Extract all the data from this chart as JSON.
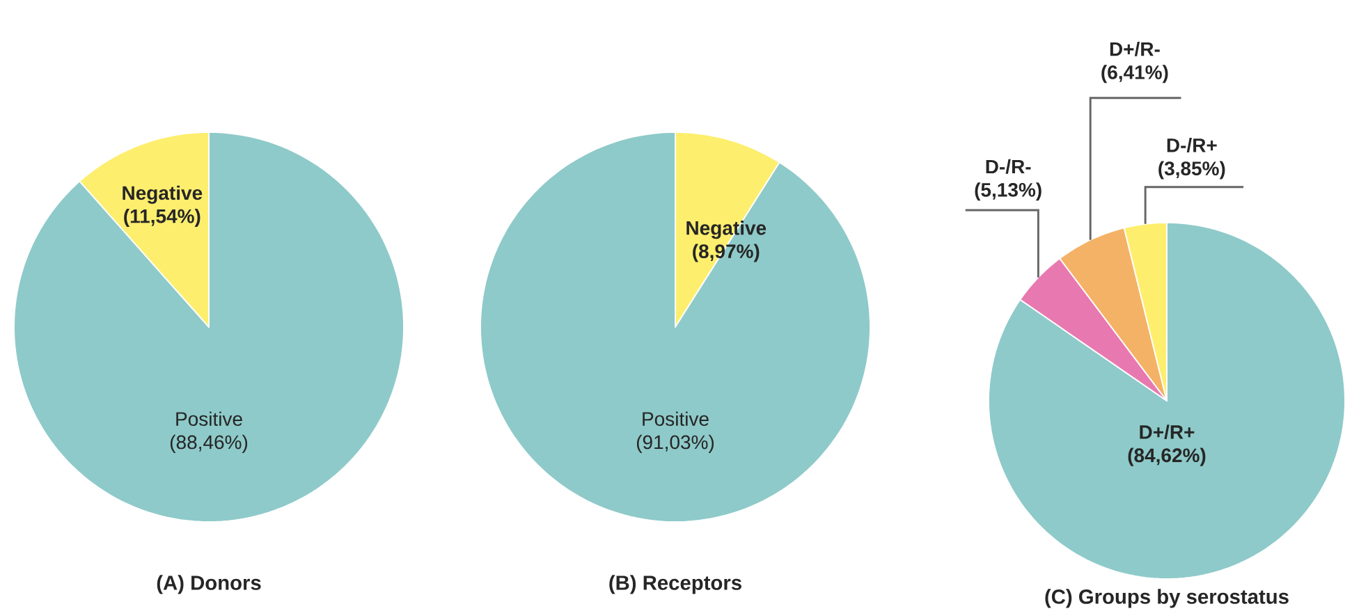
{
  "chart_data": [
    {
      "type": "pie",
      "title": "(A) Donors",
      "categories": [
        "Positive",
        "Negative"
      ],
      "values": [
        88.46,
        11.54
      ],
      "colors": [
        "#8ecac9",
        "#fdee6e"
      ],
      "value_labels": [
        "(88,46%)",
        "(11,54%)"
      ]
    },
    {
      "type": "pie",
      "title": "(B) Receptors",
      "categories": [
        "Negative",
        "Positive"
      ],
      "values": [
        8.97,
        91.03
      ],
      "colors": [
        "#fdee6e",
        "#8ecac9"
      ],
      "value_labels": [
        "(8,97%)",
        "(91,03%)"
      ]
    },
    {
      "type": "pie",
      "title": "(C) Groups by serostatus",
      "categories": [
        "D+/R+",
        "D-/R-",
        "D+/R-",
        "D-/R+"
      ],
      "values": [
        84.62,
        5.13,
        6.41,
        3.85
      ],
      "colors": [
        "#8ecac9",
        "#e879b0",
        "#f4b266",
        "#fdee6e"
      ],
      "value_labels": [
        "(84,62%)",
        "(5,13%)",
        "(6,41%)",
        "(3,85%)"
      ]
    }
  ]
}
